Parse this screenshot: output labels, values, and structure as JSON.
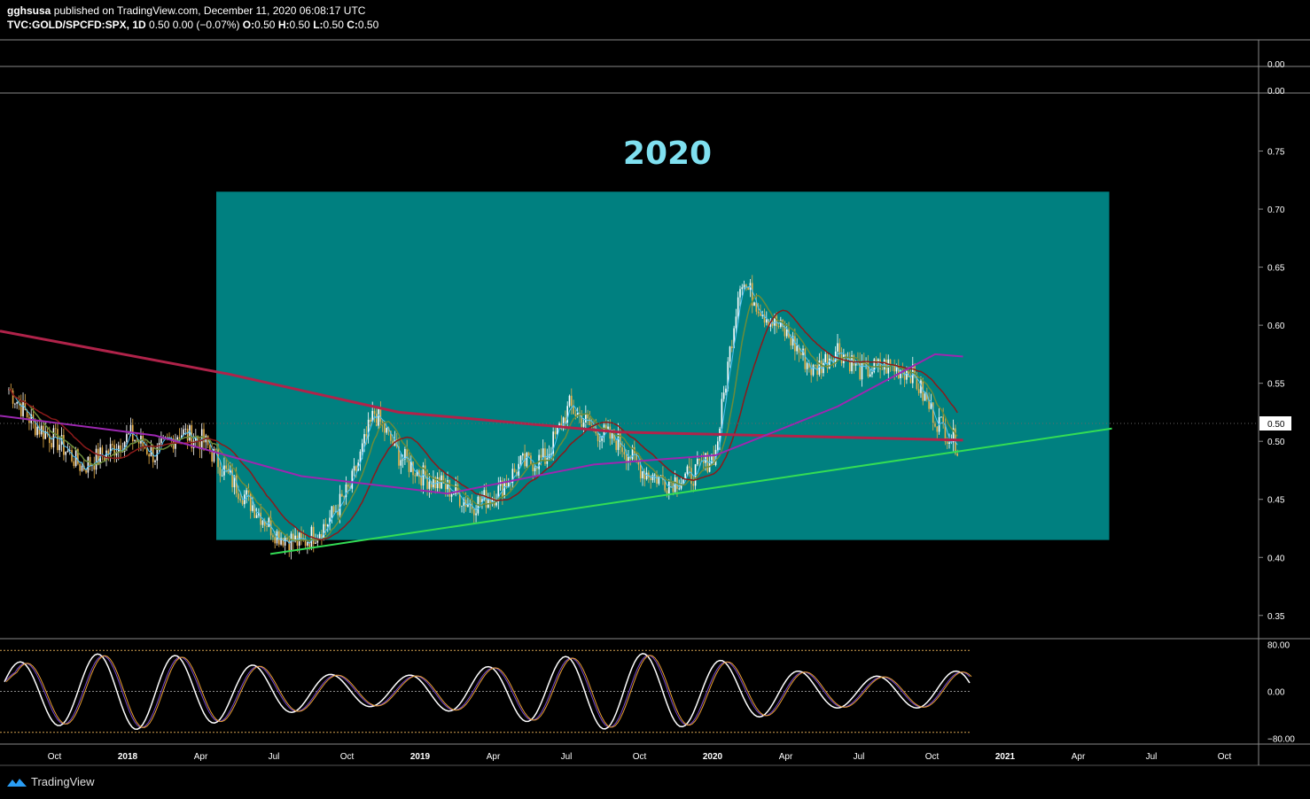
{
  "header": {
    "publisher": "gghsusa",
    "published_text": "published on TradingView.com, December 11, 2020 06:08:17 UTC",
    "symbol": "TVC:GOLD/SPCFD:SPX, 1D",
    "change": "0.50 0.00 (−0.07%)",
    "ohlc": {
      "o_label": "O:",
      "o": "0.50",
      "h_label": "H:",
      "h": "0.50",
      "l_label": "L:",
      "l": "0.50",
      "c_label": "C:",
      "c": "0.50"
    }
  },
  "watermark": {
    "label": "TradingView",
    "icon": "tradingview-logo-icon"
  },
  "colors": {
    "background": "#000000",
    "axis_text": "#ffffff",
    "box_fill": "#008080",
    "annotation_text": "#7fe0f0",
    "ma_long": "#b0234a",
    "ma_mid": "#9c27b0",
    "ma_short1": "#6b8c3a",
    "ma_short2": "#8b1a1a",
    "ma_fast": "#4fc3f7",
    "trendline": "#33dd55",
    "candle_up": "#ffffff",
    "candle_down": "#e8b04a",
    "osc_line": "#ffffff",
    "osc_signal": "#e8a030",
    "osc_slow": "#7a4bd0",
    "osc_div_bull": "#5bc8e8",
    "osc_div_bear": "#d02020"
  },
  "chart_data": {
    "type": "candlestick",
    "title": "",
    "annotation": "2020",
    "price_axis": {
      "ticks": [
        "0.75",
        "0.70",
        "0.65",
        "0.60",
        "0.55",
        "0.50",
        "0.45",
        "0.40",
        "0.35"
      ],
      "range": [
        0.33,
        0.8
      ],
      "last_price_label": "0.50"
    },
    "top_panes": [
      {
        "label": "0.00"
      },
      {
        "label": "0.00"
      }
    ],
    "x_axis": {
      "ticks": [
        "Oct",
        "2018",
        "Apr",
        "Jul",
        "Oct",
        "2019",
        "Apr",
        "Jul",
        "Oct",
        "2020",
        "Apr",
        "Jul",
        "Oct",
        "2021",
        "Apr",
        "Jul",
        "Oct"
      ]
    },
    "highlight_box": {
      "x_start": "2018-05",
      "x_end": "2021-06",
      "y_range": [
        0.415,
        0.715
      ]
    },
    "trendline": {
      "from": [
        "2018-07",
        0.403
      ],
      "to": [
        "2021-06",
        0.511
      ]
    },
    "price_series": {
      "x": [
        "2017-09",
        "2017-10",
        "2017-11",
        "2017-12",
        "2018-01",
        "2018-02",
        "2018-03",
        "2018-04",
        "2018-05",
        "2018-06",
        "2018-07",
        "2018-08",
        "2018-09",
        "2018-10",
        "2018-11",
        "2018-12",
        "2019-01",
        "2019-02",
        "2019-03",
        "2019-04",
        "2019-05",
        "2019-06",
        "2019-07",
        "2019-08",
        "2019-09",
        "2019-10",
        "2019-11",
        "2019-12",
        "2020-01",
        "2020-02",
        "2020-03",
        "2020-04",
        "2020-05",
        "2020-06",
        "2020-07",
        "2020-08",
        "2020-09",
        "2020-10",
        "2020-11",
        "2020-12"
      ],
      "close": [
        0.545,
        0.515,
        0.5,
        0.478,
        0.49,
        0.505,
        0.488,
        0.508,
        0.5,
        0.47,
        0.445,
        0.42,
        0.412,
        0.428,
        0.46,
        0.525,
        0.488,
        0.47,
        0.46,
        0.445,
        0.455,
        0.48,
        0.485,
        0.53,
        0.51,
        0.5,
        0.475,
        0.465,
        0.47,
        0.49,
        0.64,
        0.61,
        0.59,
        0.56,
        0.58,
        0.56,
        0.565,
        0.56,
        0.52,
        0.495
      ]
    },
    "moving_averages": [
      {
        "color_key": "ma_long",
        "y_start": 0.595,
        "y_end": 0.501
      },
      {
        "color_key": "ma_mid",
        "y_start": 0.522,
        "y_end": 0.573
      }
    ],
    "oscillator": {
      "ticks": [
        "80.00",
        "0.00",
        "−80.00"
      ],
      "range": [
        -90,
        90
      ],
      "levels": [
        70,
        0,
        -70
      ]
    }
  }
}
